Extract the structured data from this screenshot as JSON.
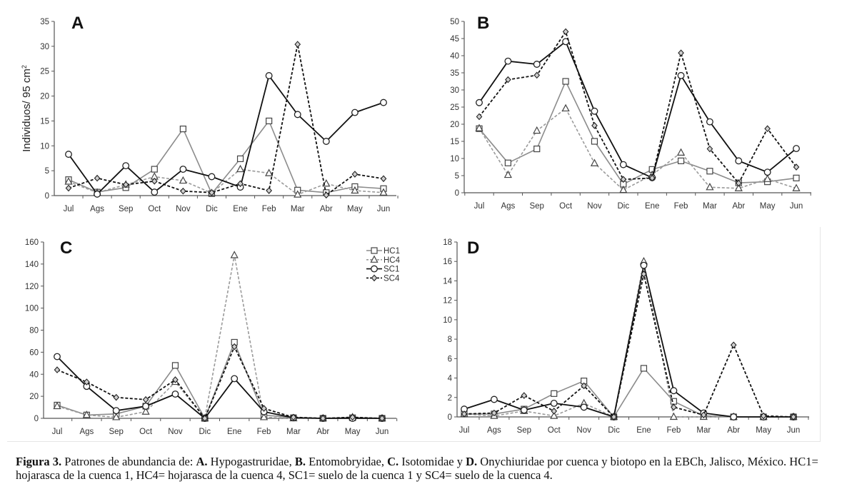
{
  "chart_data": [
    {
      "type": "line",
      "panel_label": "A",
      "ylabel": "Individuos/ 95 cm",
      "ylabel_sup": "2",
      "xlabel": "",
      "categories": [
        "Jul",
        "Ags",
        "Sep",
        "Oct",
        "Nov",
        "Dic",
        "Ene",
        "Feb",
        "Mar",
        "Abr",
        "May",
        "Jun"
      ],
      "ylim": [
        0,
        35
      ],
      "yticks": [
        0,
        5,
        10,
        15,
        20,
        25,
        30,
        35
      ],
      "grid": false,
      "series": [
        {
          "name": "HC1",
          "values": [
            3.2,
            0.7,
            1.6,
            5.3,
            13.4,
            0.4,
            7.4,
            15.0,
            1.1,
            0.6,
            1.8,
            1.4
          ]
        },
        {
          "name": "HC4",
          "values": [
            2.8,
            0.6,
            2.2,
            3.8,
            3.0,
            0.5,
            5.3,
            4.5,
            0.2,
            2.4,
            1.0,
            0.6
          ]
        },
        {
          "name": "SC1",
          "values": [
            8.3,
            0.3,
            6.0,
            0.7,
            5.3,
            3.8,
            1.7,
            24.1,
            16.3,
            10.9,
            16.7,
            18.7
          ]
        },
        {
          "name": "SC4",
          "values": [
            1.5,
            3.5,
            2.2,
            2.9,
            0.9,
            0.6,
            2.4,
            1.0,
            30.4,
            0.1,
            4.3,
            3.4
          ]
        }
      ]
    },
    {
      "type": "line",
      "panel_label": "B",
      "ylabel": "",
      "xlabel": "",
      "categories": [
        "Jul",
        "Ags",
        "Sep",
        "Oct",
        "Nov",
        "Dic",
        "Ene",
        "Feb",
        "Mar",
        "Abr",
        "May",
        "Jun"
      ],
      "ylim": [
        0,
        50
      ],
      "yticks": [
        0,
        5,
        10,
        15,
        20,
        25,
        30,
        35,
        40,
        45,
        50
      ],
      "grid": false,
      "series": [
        {
          "name": "HC1",
          "values": [
            18.7,
            8.7,
            12.8,
            32.5,
            15.0,
            2.5,
            6.8,
            9.3,
            6.3,
            2.9,
            3.2,
            4.3
          ]
        },
        {
          "name": "HC4",
          "values": [
            18.8,
            5.2,
            18.1,
            24.6,
            8.6,
            0.8,
            5.2,
            11.7,
            1.6,
            1.3,
            4.0,
            1.3
          ]
        },
        {
          "name": "SC1",
          "values": [
            26.3,
            38.4,
            37.5,
            44.1,
            23.8,
            8.2,
            4.4,
            34.2,
            20.7,
            9.3,
            6.0,
            12.9
          ]
        },
        {
          "name": "SC4",
          "values": [
            22.2,
            33.0,
            34.3,
            47.0,
            19.6,
            3.9,
            4.3,
            40.8,
            12.8,
            2.8,
            18.7,
            7.5
          ]
        }
      ]
    },
    {
      "type": "line",
      "panel_label": "C",
      "ylabel": "",
      "xlabel": "",
      "categories": [
        "Jul",
        "Ags",
        "Sep",
        "Oct",
        "Nov",
        "Dic",
        "Ene",
        "Feb",
        "Mar",
        "Abr",
        "May",
        "Jun"
      ],
      "ylim": [
        0,
        160
      ],
      "yticks": [
        0,
        20,
        40,
        60,
        80,
        100,
        120,
        140,
        160
      ],
      "grid": false,
      "legend": {
        "position": "top-right",
        "entries": [
          "HC1",
          "HC4",
          "SC1",
          "SC4"
        ]
      },
      "series": [
        {
          "name": "HC1",
          "values": [
            12,
            3,
            4,
            11,
            48,
            0,
            69,
            3,
            0.5,
            0,
            0.5,
            0
          ]
        },
        {
          "name": "HC4",
          "values": [
            11,
            3,
            1,
            6,
            33,
            0,
            148,
            1,
            0,
            0,
            1,
            0
          ]
        },
        {
          "name": "SC1",
          "values": [
            56,
            29,
            7,
            11,
            22,
            0,
            36,
            6,
            0.5,
            0,
            0,
            0
          ]
        },
        {
          "name": "SC4",
          "values": [
            44,
            33,
            19,
            17,
            35,
            0,
            65,
            9,
            1,
            0,
            1,
            0
          ]
        }
      ]
    },
    {
      "type": "line",
      "panel_label": "D",
      "ylabel": "",
      "xlabel": "",
      "categories": [
        "Jul",
        "Ags",
        "Sep",
        "Oct",
        "Nov",
        "Dic",
        "Ene",
        "Feb",
        "Mar",
        "Abr",
        "May",
        "Jun"
      ],
      "ylim": [
        0,
        18
      ],
      "yticks": [
        0,
        2,
        4,
        6,
        8,
        10,
        12,
        14,
        16,
        18
      ],
      "grid": false,
      "series": [
        {
          "name": "HC1",
          "values": [
            0.3,
            0.3,
            0.8,
            2.4,
            3.7,
            0,
            5.0,
            1.6,
            0.1,
            0,
            0,
            0
          ]
        },
        {
          "name": "HC4",
          "values": [
            0.3,
            0.1,
            0.6,
            0.1,
            1.4,
            0,
            16.0,
            0,
            0,
            0,
            0,
            0
          ]
        },
        {
          "name": "SC1",
          "values": [
            0.8,
            1.8,
            0.7,
            1.4,
            1.0,
            0,
            15.6,
            2.7,
            0.4,
            0,
            0,
            0
          ]
        },
        {
          "name": "SC4",
          "values": [
            0.3,
            0.4,
            2.2,
            0.6,
            3.2,
            0,
            14.7,
            1.0,
            0.2,
            7.4,
            0.1,
            0
          ]
        }
      ]
    }
  ],
  "series_styles": {
    "HC1": {
      "color": "#8c8c8c",
      "dash": "solid",
      "marker": "square"
    },
    "HC4": {
      "color": "#9a9a9a",
      "dash": "dashed",
      "marker": "triangle"
    },
    "SC1": {
      "color": "#111111",
      "dash": "solid",
      "marker": "circle"
    },
    "SC4": {
      "color": "#111111",
      "dash": "dashed",
      "marker": "diamond"
    }
  },
  "caption": {
    "fig_label": "Figura 3.",
    "part1": " Patrones de abundancia de: ",
    "a_label": "A.",
    "a_text": " Hypogastruridae, ",
    "b_label": "B.",
    "b_text": " Entomobryidae, ",
    "c_label": "C.",
    "c_text": " Isotomidae y ",
    "d_label": "D.",
    "d_text": " Onychiuridae por cuenca y biotopo en la EBCh, Jalisco, México. HC1= hojarasca de la cuenca 1, HC4= hojarasca de la cuenca 4, SC1= suelo de la cuenca 1 y SC4= suelo de la cuenca 4."
  }
}
